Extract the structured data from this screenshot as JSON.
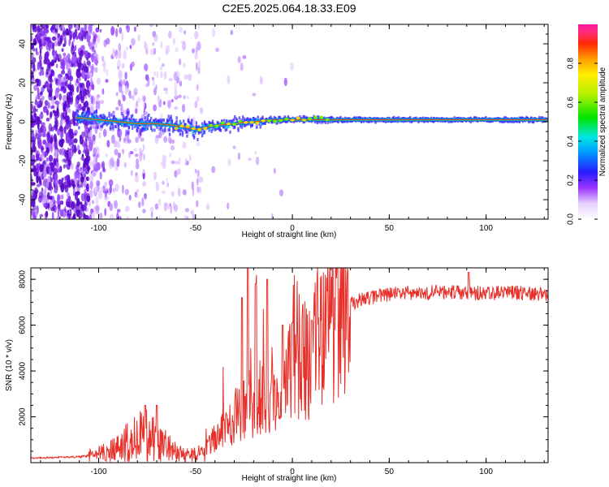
{
  "title": "C2E5.2025.064.18.33.E09",
  "colors": {
    "signal_line": "#e8302a",
    "scatter_main": "#7a22e0",
    "frame": "#000000"
  },
  "chart_data": [
    {
      "id": "spectrogram",
      "type": "heatmap",
      "title": "C2E5.2025.064.18.33.E09",
      "xlabel": "Height of straight line (km)",
      "ylabel": "Frequency (Hz)",
      "xlim": [
        -135,
        132
      ],
      "ylim": [
        -50,
        50
      ],
      "xticks": [
        -100,
        -50,
        0,
        50,
        100
      ],
      "yticks": [
        -40,
        -20,
        0,
        20,
        40
      ],
      "colorbar": {
        "label": "Normalized spectral amplitude",
        "range": [
          0,
          1
        ],
        "ticks": [
          0.0,
          0.2,
          0.4,
          0.6,
          0.8
        ],
        "tick_labels": [
          "0.0",
          "0.2",
          "0.4",
          "0.6",
          "0.8"
        ]
      },
      "carrier_frequency_hz": [
        [
          -110,
          2
        ],
        [
          -100,
          1
        ],
        [
          -90,
          0
        ],
        [
          -80,
          -1
        ],
        [
          -70,
          -1
        ],
        [
          -60,
          -2
        ],
        [
          -50,
          -4
        ],
        [
          -45,
          -3
        ],
        [
          -40,
          -2
        ],
        [
          -30,
          -1
        ],
        [
          -20,
          0
        ],
        [
          -10,
          1
        ],
        [
          0,
          1
        ],
        [
          10,
          1
        ],
        [
          20,
          1
        ],
        [
          50,
          1
        ],
        [
          100,
          1
        ],
        [
          132,
          1
        ]
      ],
      "noise_region_km": [
        -135,
        -105
      ]
    },
    {
      "id": "snr",
      "type": "line",
      "xlabel": "Height of straight line (km)",
      "ylabel": "SNR (10 * v/v)",
      "xlim": [
        -135,
        132
      ],
      "ylim": [
        0,
        8500
      ],
      "xticks": [
        -100,
        -50,
        0,
        50,
        100
      ],
      "yticks": [
        2000,
        4000,
        6000,
        8000
      ],
      "series": [
        {
          "name": "SNR",
          "envelope": [
            [
              -135,
              200
            ],
            [
              -110,
              250
            ],
            [
              -100,
              350
            ],
            [
              -90,
              600
            ],
            [
              -85,
              900
            ],
            [
              -80,
              1100
            ],
            [
              -75,
              1200
            ],
            [
              -70,
              1100
            ],
            [
              -65,
              700
            ],
            [
              -60,
              450
            ],
            [
              -55,
              350
            ],
            [
              -50,
              350
            ],
            [
              -45,
              500
            ],
            [
              -40,
              1100
            ],
            [
              -35,
              1600
            ],
            [
              -30,
              2000
            ],
            [
              -25,
              2400
            ],
            [
              -20,
              2700
            ],
            [
              -15,
              2900
            ],
            [
              -10,
              3200
            ],
            [
              -5,
              3500
            ],
            [
              0,
              3900
            ],
            [
              5,
              4300
            ],
            [
              10,
              4900
            ],
            [
              15,
              5600
            ],
            [
              20,
              6200
            ],
            [
              25,
              6700
            ],
            [
              30,
              6900
            ],
            [
              35,
              7100
            ],
            [
              40,
              7200
            ],
            [
              50,
              7350
            ],
            [
              60,
              7400
            ],
            [
              80,
              7450
            ],
            [
              100,
              7400
            ],
            [
              120,
              7400
            ],
            [
              132,
              7350
            ]
          ],
          "spikes": [
            [
              -76,
              2500
            ],
            [
              -70,
              2500
            ],
            [
              -26,
              7200
            ],
            [
              -23,
              8500
            ],
            [
              -19,
              7800
            ],
            [
              -13,
              8000
            ],
            [
              -5,
              6000
            ],
            [
              0,
              6100
            ],
            [
              10,
              6200
            ],
            [
              91,
              8300
            ]
          ]
        }
      ]
    }
  ]
}
